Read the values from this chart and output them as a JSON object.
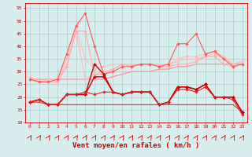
{
  "x": [
    0,
    1,
    2,
    3,
    4,
    5,
    6,
    7,
    8,
    9,
    10,
    11,
    12,
    13,
    14,
    15,
    16,
    17,
    18,
    19,
    20,
    21,
    22,
    23
  ],
  "lines": [
    {
      "color": "#ffbbbb",
      "linewidth": 0.8,
      "marker": "D",
      "markersize": 1.8,
      "values": [
        28,
        26,
        27,
        27,
        33,
        46,
        27,
        29,
        30,
        31,
        33,
        33,
        33,
        33,
        33,
        33,
        34,
        35,
        35,
        36,
        37,
        35,
        33,
        34
      ]
    },
    {
      "color": "#ffbbbb",
      "linewidth": 0.8,
      "marker": "D",
      "markersize": 1.8,
      "values": [
        28,
        26,
        27,
        27,
        35,
        47,
        35,
        31,
        32,
        33,
        33,
        33,
        33,
        33,
        33,
        33,
        35,
        36,
        36,
        37,
        38,
        36,
        33,
        34
      ]
    },
    {
      "color": "#ffaaaa",
      "linewidth": 0.8,
      "marker": "D",
      "markersize": 1.8,
      "values": [
        27,
        26,
        26,
        26,
        32,
        46,
        46,
        29,
        29,
        31,
        33,
        32,
        33,
        33,
        32,
        32,
        33,
        33,
        34,
        36,
        36,
        33,
        32,
        33
      ]
    },
    {
      "color": "#ff8888",
      "linewidth": 0.8,
      "marker": null,
      "markersize": 0,
      "values": [
        27,
        27,
        27,
        27,
        27,
        27,
        27,
        27,
        27,
        28,
        29,
        30,
        30,
        30,
        31,
        31,
        32,
        32,
        33,
        33,
        33,
        33,
        33,
        33
      ]
    },
    {
      "color": "#ff5555",
      "linewidth": 0.8,
      "marker": "D",
      "markersize": 1.8,
      "values": [
        27,
        26,
        26,
        27,
        37,
        48,
        53,
        40,
        29,
        30,
        32,
        32,
        33,
        33,
        32,
        33,
        41,
        41,
        45,
        37,
        38,
        35,
        32,
        33
      ]
    },
    {
      "color": "#cc0000",
      "linewidth": 1.0,
      "marker": "D",
      "markersize": 2.0,
      "values": [
        18,
        19,
        17,
        17,
        21,
        21,
        21,
        33,
        29,
        22,
        21,
        22,
        22,
        22,
        17,
        18,
        24,
        24,
        23,
        25,
        20,
        20,
        20,
        14
      ]
    },
    {
      "color": "#cc0000",
      "linewidth": 1.0,
      "marker": "D",
      "markersize": 2.0,
      "values": [
        18,
        19,
        17,
        17,
        21,
        21,
        21,
        28,
        28,
        22,
        21,
        22,
        22,
        22,
        17,
        18,
        24,
        24,
        23,
        25,
        20,
        20,
        20,
        14
      ]
    },
    {
      "color": "#dd2222",
      "linewidth": 0.8,
      "marker": "D",
      "markersize": 1.8,
      "values": [
        18,
        19,
        17,
        17,
        21,
        21,
        22,
        21,
        22,
        22,
        21,
        22,
        22,
        22,
        17,
        18,
        23,
        23,
        22,
        24,
        20,
        20,
        19,
        13
      ]
    },
    {
      "color": "#ff2222",
      "linewidth": 0.8,
      "marker": null,
      "markersize": 0,
      "values": [
        18,
        18,
        17,
        17,
        17,
        17,
        17,
        17,
        17,
        17,
        17,
        17,
        17,
        17,
        17,
        17,
        17,
        17,
        17,
        17,
        17,
        17,
        17,
        14
      ]
    }
  ],
  "xlim": [
    -0.5,
    23.5
  ],
  "ylim": [
    10,
    57
  ],
  "yticks": [
    10,
    15,
    20,
    25,
    30,
    35,
    40,
    45,
    50,
    55
  ],
  "xticks": [
    0,
    1,
    2,
    3,
    4,
    5,
    6,
    7,
    8,
    9,
    10,
    11,
    12,
    13,
    14,
    15,
    16,
    17,
    18,
    19,
    20,
    21,
    22,
    23
  ],
  "xlabel": "Vent moyen/en rafales ( km/h )",
  "bg_color": "#d8eeee",
  "grid_color": "#aacccc",
  "axis_color": "#cc0000",
  "tick_color": "#cc0000"
}
